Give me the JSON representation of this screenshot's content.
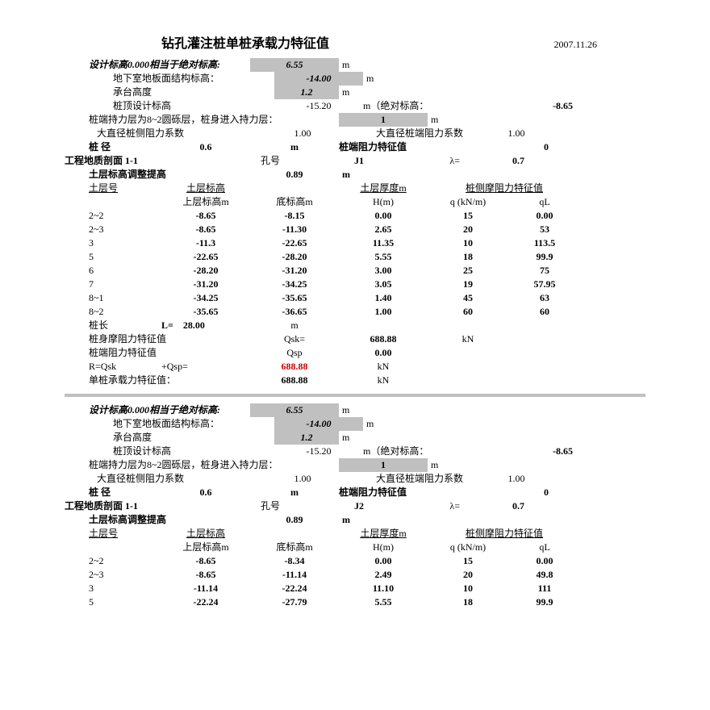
{
  "date": "2007.11.26",
  "title": "钻孔灌注桩单桩承载力特征值",
  "common": {
    "design_elev_label": "设计标高0.000相当于绝对标高:",
    "design_elev": "6.55",
    "basement_label": "地下室地板面结构标高：",
    "basement_val": "-14.00",
    "cap_height_label": "承台高度",
    "cap_height": "1.2",
    "pile_top_label": "桩顶设计标高",
    "pile_top": "-15.20",
    "abs_elev_label": "m（绝对标高：",
    "abs_elev": "-8.65",
    "bearing_layer_text": "桩端持力层为8~2圆砾层，桩身进入持力层：",
    "bearing_layer_val": "1",
    "coef_side_label": "大直径桩侧阻力系数",
    "coef_side": "1.00",
    "coef_end_label": "大直径桩端阻力系数",
    "coef_end": "1.00",
    "diameter_label": "桩 径",
    "diameter": "0.6",
    "end_resist_label": "桩端阻力特征值",
    "end_resist": "0",
    "profile_label": "工程地质剖面 1-1",
    "hole_label": "孔号",
    "lambda_label": "λ=",
    "lambda": "0.7",
    "adjust_label": "土层标高调整提高",
    "adjust": "0.89",
    "col_layer": "土层号",
    "col_elev": "土层标高",
    "col_thick": "土层厚度m",
    "col_friction": "桩侧摩阻力特征值",
    "sub_top": "上层标高m",
    "sub_bot": "底标高m",
    "sub_h": "H(m)",
    "sub_q": "q (kN/m)",
    "sub_ql": "qL",
    "pile_len_label": "桩长",
    "pile_len_L": "L=",
    "qsk_label": "桩身摩阻力特征值",
    "qsk_sym": "Qsk=",
    "qsp_label": "桩端阻力特征值",
    "qsp_sym": "Qsp",
    "r_label": "R=Qsk",
    "r_plus": "+Qsp=",
    "single_label": "单桩承载力特征值：",
    "m": "m",
    "kn": "kN"
  },
  "sec1": {
    "hole": "J1",
    "rows": [
      {
        "n": "2~2",
        "a": "-8.65",
        "b": "-8.15",
        "h": "0.00",
        "q": "15",
        "ql": "0.00"
      },
      {
        "n": "2~3",
        "a": "-8.65",
        "b": "-11.30",
        "h": "2.65",
        "q": "20",
        "ql": "53"
      },
      {
        "n": "3",
        "a": "-11.3",
        "b": "-22.65",
        "h": "11.35",
        "q": "10",
        "ql": "113.5"
      },
      {
        "n": "5",
        "a": "-22.65",
        "b": "-28.20",
        "h": "5.55",
        "q": "18",
        "ql": "99.9"
      },
      {
        "n": "6",
        "a": "-28.20",
        "b": "-31.20",
        "h": "3.00",
        "q": "25",
        "ql": "75"
      },
      {
        "n": "7",
        "a": "-31.20",
        "b": "-34.25",
        "h": "3.05",
        "q": "19",
        "ql": "57.95"
      },
      {
        "n": "8~1",
        "a": "-34.25",
        "b": "-35.65",
        "h": "1.40",
        "q": "45",
        "ql": "63"
      },
      {
        "n": "8~2",
        "a": "-35.65",
        "b": "-36.65",
        "h": "1.00",
        "q": "60",
        "ql": "60"
      }
    ],
    "pile_len": "28.00",
    "qsk": "688.88",
    "qsp": "0.00",
    "r": "688.88",
    "single": "688.88"
  },
  "sec2": {
    "hole": "J2",
    "rows": [
      {
        "n": "2~2",
        "a": "-8.65",
        "b": "-8.34",
        "h": "0.00",
        "q": "15",
        "ql": "0.00"
      },
      {
        "n": "2~3",
        "a": "-8.65",
        "b": "-11.14",
        "h": "2.49",
        "q": "20",
        "ql": "49.8"
      },
      {
        "n": "3",
        "a": "-11.14",
        "b": "-22.24",
        "h": "11.10",
        "q": "10",
        "ql": "111"
      },
      {
        "n": "5",
        "a": "-22.24",
        "b": "-27.79",
        "h": "5.55",
        "q": "18",
        "ql": "99.9"
      }
    ]
  }
}
